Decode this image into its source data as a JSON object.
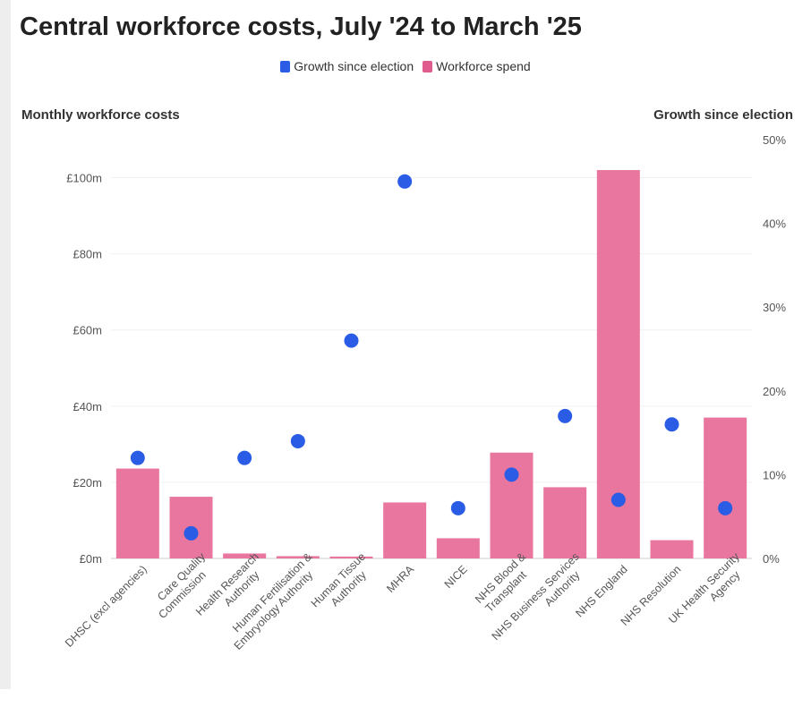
{
  "title": "Central workforce costs, July '24 to March '25",
  "legend": {
    "growth_label": "Growth since election",
    "spend_label": "Workforce spend"
  },
  "axes": {
    "left_title": "Monthly workforce costs",
    "right_title": "Growth since election"
  },
  "colors": {
    "spend": "#e8769e",
    "growth": "#2a5ce6",
    "legend_growth": "#2a5ce6",
    "legend_spend": "#e05c8e"
  },
  "chart_data": {
    "type": "bar",
    "title": "Central workforce costs, July '24 to March '25",
    "categories": [
      [
        "DHSC (excl agencies)"
      ],
      [
        "Care Quality",
        "Commission"
      ],
      [
        "Health Research",
        "Authority"
      ],
      [
        "Human Fertilisation &",
        "Embryology Authority"
      ],
      [
        "Human Tissue",
        "Authority"
      ],
      [
        "MHRA"
      ],
      [
        "NICE"
      ],
      [
        "NHS Blood &",
        "Transplant"
      ],
      [
        "NHS Business Services",
        "Authority"
      ],
      [
        "NHS England"
      ],
      [
        "NHS Resolution"
      ],
      [
        "UK Health Security",
        "Agency"
      ]
    ],
    "series": [
      {
        "name": "Workforce spend",
        "type": "bar",
        "axis": "left",
        "values": [
          23.6,
          16.2,
          1.3,
          0.6,
          0.5,
          14.7,
          5.3,
          27.8,
          18.7,
          102,
          4.8,
          37
        ]
      },
      {
        "name": "Growth since election",
        "type": "scatter",
        "axis": "right",
        "values": [
          12,
          3,
          12,
          14,
          26,
          45,
          6,
          10,
          17,
          7,
          16,
          6
        ]
      }
    ],
    "ylabel_left": "Monthly workforce costs",
    "ylabel_right": "Growth since election",
    "ylim_left": [
      0,
      110
    ],
    "ylim_right": [
      0,
      50
    ],
    "yticks_left": [
      "£0m",
      "£20m",
      "£40m",
      "£60m",
      "£80m",
      "£100m"
    ],
    "yticks_right": [
      "0%",
      "10%",
      "20%",
      "30%",
      "40%",
      "50%"
    ],
    "legend_position": "top-center",
    "grid": true
  }
}
